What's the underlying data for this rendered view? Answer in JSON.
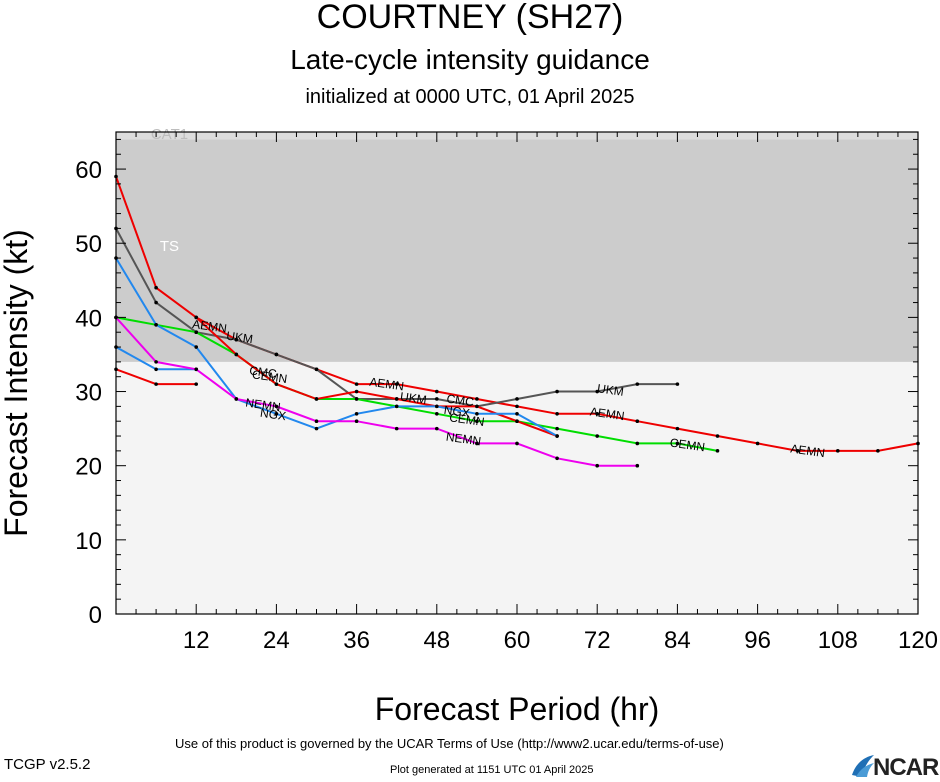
{
  "header": {
    "title": "COURTNEY (SH27)",
    "subtitle": "Late-cycle intensity guidance",
    "init": "initialized at 0000 UTC, 01 April 2025"
  },
  "footer": {
    "terms": "Use of this product is governed by the UCAR Terms of Use (http://www2.ucar.edu/terms-of-use)",
    "version": "TCGP v2.5.2",
    "generated": "Plot generated at 1151 UTC   01 April 2025",
    "logo": "NCAR"
  },
  "colors": {
    "AEMN": "#ee0000",
    "UKM": "#555555",
    "CEMN": "#00dd00",
    "NGX": "#2288ee",
    "NEMN": "#ee00ee",
    "CMC": "#ee0000",
    "ts_band": "#cccccc",
    "cat1_band": "#dcdcdc",
    "td_band": "#f4f4f4"
  },
  "chart_data": {
    "type": "line",
    "title": "COURTNEY (SH27)",
    "subtitle": "Late-cycle intensity guidance",
    "xlabel": "Forecast Period (hr)",
    "ylabel": "Forecast Intensity (kt)",
    "xlim": [
      0,
      120
    ],
    "ylim": [
      0,
      65
    ],
    "xticks": [
      12,
      24,
      36,
      48,
      60,
      72,
      84,
      96,
      108,
      120
    ],
    "yticks": [
      0,
      10,
      20,
      30,
      40,
      50,
      60
    ],
    "bands": [
      {
        "label": "TS",
        "from": 34,
        "to": 64
      },
      {
        "label": "CAT1",
        "from": 64,
        "to": 65
      }
    ],
    "series": [
      {
        "name": "AEMN",
        "x": [
          0,
          6,
          12,
          18,
          24,
          30,
          36,
          42,
          48,
          54,
          60,
          66,
          72,
          78,
          84,
          90,
          96,
          102,
          108,
          114,
          120
        ],
        "y": [
          59,
          44,
          40,
          37,
          35,
          33,
          31,
          31,
          30,
          29,
          28,
          27,
          27,
          26,
          25,
          24,
          23,
          22,
          22,
          22,
          23
        ]
      },
      {
        "name": "UKM",
        "x": [
          0,
          6,
          12,
          18,
          24,
          30,
          36,
          42,
          48,
          54,
          60,
          66,
          72,
          78,
          84
        ],
        "y": [
          52,
          42,
          38,
          37,
          35,
          33,
          29,
          29,
          29,
          28,
          29,
          30,
          30,
          31,
          31
        ]
      },
      {
        "name": "CEMN",
        "x": [
          0,
          6,
          12,
          18,
          24,
          30,
          36,
          42,
          48,
          54,
          60,
          66,
          72,
          78,
          84,
          90
        ],
        "y": [
          40,
          39,
          38,
          35,
          31,
          29,
          29,
          28,
          27,
          26,
          26,
          25,
          24,
          23,
          23,
          22
        ]
      },
      {
        "name": "CMC",
        "x": [
          0,
          6,
          12
        ],
        "y": [
          33,
          31,
          31
        ]
      },
      {
        "name": "CMC",
        "x": [
          12,
          18,
          24,
          30,
          36,
          42,
          48,
          54,
          60,
          66
        ],
        "y": [
          40,
          35,
          31,
          29,
          30,
          29,
          28,
          28,
          26,
          24
        ]
      },
      {
        "name": "NGX",
        "x": [
          0,
          6,
          12,
          18,
          24,
          30,
          36,
          42,
          48,
          54,
          60,
          66
        ],
        "y": [
          48,
          39,
          36,
          29,
          27,
          25,
          27,
          28,
          28,
          27,
          27,
          24
        ]
      },
      {
        "name": "NGX",
        "x": [
          0,
          6,
          12
        ],
        "y": [
          36,
          33,
          33
        ]
      },
      {
        "name": "NEMN",
        "x": [
          0,
          6,
          12,
          18,
          24,
          30,
          36,
          42,
          48,
          54,
          60,
          66,
          72,
          78
        ],
        "y": [
          40,
          34,
          33,
          29,
          28,
          26,
          26,
          25,
          25,
          23,
          23,
          21,
          20,
          20
        ]
      }
    ],
    "labels": [
      {
        "text": "AEMN",
        "x": 14,
        "y": 38.8
      },
      {
        "text": "UKM",
        "x": 18.5,
        "y": 37.3
      },
      {
        "text": "CEMN",
        "x": 23,
        "y": 32
      },
      {
        "text": "CMC",
        "x": 22,
        "y": 32.6
      },
      {
        "text": "NEMN",
        "x": 22,
        "y": 28.2
      },
      {
        "text": "NGX",
        "x": 23.5,
        "y": 26.9
      },
      {
        "text": "AEMN",
        "x": 40.5,
        "y": 31
      },
      {
        "text": "UKM",
        "x": 44.5,
        "y": 29.1
      },
      {
        "text": "CMC",
        "x": 51.5,
        "y": 28.8
      },
      {
        "text": "NGX",
        "x": 51,
        "y": 27.3
      },
      {
        "text": "CEMN",
        "x": 52.5,
        "y": 26.2
      },
      {
        "text": "NEMN",
        "x": 52,
        "y": 23.6
      },
      {
        "text": "AEMN",
        "x": 73.5,
        "y": 27
      },
      {
        "text": "UKM",
        "x": 74,
        "y": 30.2
      },
      {
        "text": "CEMN",
        "x": 85.5,
        "y": 22.8
      },
      {
        "text": "AEMN",
        "x": 103.5,
        "y": 22
      },
      {
        "text": "TS",
        "x": 8,
        "y": 49.5
      },
      {
        "text": "CAT1",
        "x": 8,
        "y": 64.6
      }
    ]
  }
}
